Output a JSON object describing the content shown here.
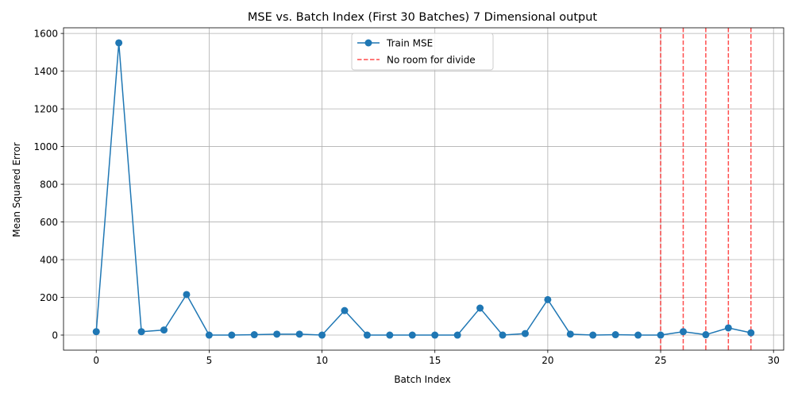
{
  "chart_data": {
    "type": "line",
    "title": "MSE vs. Batch Index (First 30 Batches) 7 Dimensional output",
    "xlabel": "Batch Index",
    "ylabel": "Mean Squared Error",
    "xlim": [
      -1.45,
      30.45
    ],
    "ylim": [
      -80,
      1630
    ],
    "xticks": [
      0,
      5,
      10,
      15,
      20,
      25,
      30
    ],
    "yticks": [
      0,
      200,
      400,
      600,
      800,
      1000,
      1200,
      1400,
      1600
    ],
    "grid": true,
    "legend_position": "top-center",
    "series": [
      {
        "name": "Train MSE",
        "color": "#1f77b4",
        "marker": "circle",
        "x": [
          0,
          1,
          2,
          3,
          4,
          5,
          6,
          7,
          8,
          9,
          10,
          11,
          12,
          13,
          14,
          15,
          16,
          17,
          18,
          19,
          20,
          21,
          22,
          23,
          24,
          25,
          26,
          27,
          28,
          29
        ],
        "y": [
          18,
          1550,
          18,
          27,
          215,
          0,
          0,
          2,
          5,
          5,
          0,
          130,
          0,
          0,
          0,
          0,
          0,
          143,
          0,
          8,
          188,
          5,
          0,
          2,
          0,
          0,
          18,
          2,
          38,
          12
        ]
      }
    ],
    "vlines": {
      "name": "No room for divide",
      "color": "#ff0000",
      "style": "dashed",
      "x": [
        25,
        26,
        27,
        28,
        29
      ]
    }
  }
}
